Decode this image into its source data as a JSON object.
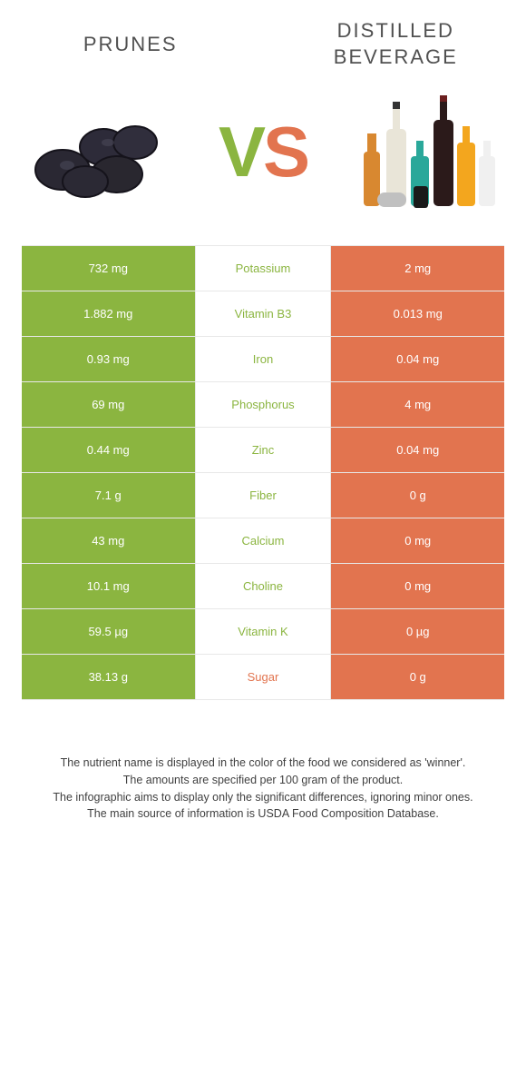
{
  "header": {
    "left_title": "Prunes",
    "right_title": "Distilled beverage"
  },
  "vs": {
    "v": "V",
    "s": "S"
  },
  "colors": {
    "green": "#8bb540",
    "orange": "#e2744f",
    "white": "#ffffff"
  },
  "rows": [
    {
      "left": "732 mg",
      "label": "Potassium",
      "right": "2 mg",
      "winner": "left"
    },
    {
      "left": "1.882 mg",
      "label": "Vitamin B3",
      "right": "0.013 mg",
      "winner": "left"
    },
    {
      "left": "0.93 mg",
      "label": "Iron",
      "right": "0.04 mg",
      "winner": "left"
    },
    {
      "left": "69 mg",
      "label": "Phosphorus",
      "right": "4 mg",
      "winner": "left"
    },
    {
      "left": "0.44 mg",
      "label": "Zinc",
      "right": "0.04 mg",
      "winner": "left"
    },
    {
      "left": "7.1 g",
      "label": "Fiber",
      "right": "0 g",
      "winner": "left"
    },
    {
      "left": "43 mg",
      "label": "Calcium",
      "right": "0 mg",
      "winner": "left"
    },
    {
      "left": "10.1 mg",
      "label": "Choline",
      "right": "0 mg",
      "winner": "left"
    },
    {
      "left": "59.5 µg",
      "label": "Vitamin K",
      "right": "0 µg",
      "winner": "left"
    },
    {
      "left": "38.13 g",
      "label": "Sugar",
      "right": "0 g",
      "winner": "right"
    }
  ],
  "notes": {
    "line1": "The nutrient name is displayed in the color of the food we considered as 'winner'.",
    "line2": "The amounts are specified per 100 gram of the product.",
    "line3": "The infographic aims to display only the significant differences, ignoring minor ones.",
    "line4": "The main source of information is USDA Food Composition Database."
  }
}
